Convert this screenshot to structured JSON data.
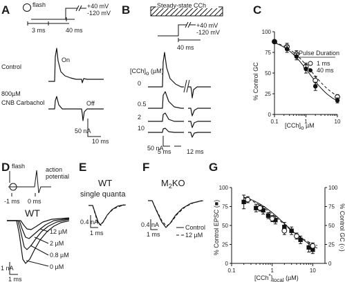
{
  "panels": {
    "A": {
      "label": "A",
      "flash": "flash",
      "v_hold": "+40 mV",
      "v_rest": "-120 mV",
      "t1": "3 ms",
      "t2": "40 ms",
      "row1": "Control",
      "row2a": "800µM",
      "row2b": "CNB Carbachol",
      "on": "On",
      "off": "Off",
      "scale_y": "50 nA",
      "scale_x": "10 ms"
    },
    "B": {
      "label": "B",
      "bar": "Steady-state CCh",
      "v_hold": "+40 mV",
      "v_rest": "-120 mV",
      "t2": "40 ms",
      "conc_title": "[CCh]",
      "conc_sub": "o",
      "conc_unit": " (µM)",
      "conc_values": [
        "0",
        "0.5",
        "2",
        "10"
      ],
      "scale_y": "50 nA",
      "scale_x1": "5 ms",
      "scale_x2": "12 ms"
    },
    "C": {
      "label": "C"
    },
    "D": {
      "label": "D",
      "flash": "flash",
      "ap1": "action",
      "ap2": "potential",
      "t1": "-1 ms",
      "t2": "0 ms",
      "wt": "WT",
      "concs": [
        "12 µM",
        "2 µM",
        "0.8 µM",
        "0 µM"
      ],
      "scale_y": "1 nA",
      "scale_x": "1 ms"
    },
    "E": {
      "label": "E",
      "title1": "WT",
      "title2": "single quanta",
      "scale_y": "0.4 nA",
      "scale_x": "1 ms"
    },
    "F": {
      "label": "F",
      "title_pre": "M",
      "title_sub": "2",
      "title_post": "KO",
      "leg1": "Control",
      "leg2": "12 µM",
      "scale_y": "0.4 nA",
      "scale_x": "1 ms"
    },
    "G": {
      "label": "G"
    }
  },
  "chart_data": [
    {
      "id": "C",
      "type": "scatter",
      "xscale": "log",
      "xlim": [
        0.1,
        10
      ],
      "ylim": [
        0,
        100
      ],
      "xticks": [
        "0.1",
        "1",
        "10"
      ],
      "yticks": [
        "0",
        "25",
        "50",
        "75",
        "100"
      ],
      "xlabel_pre": "[CCh]",
      "xlabel_sub": "o",
      "xlabel_post": " µM",
      "ylabel": "% Control GC",
      "legend_title": "Pulse Duration",
      "legend": "top-right",
      "series": [
        {
          "name": "1 ms",
          "marker": "open-circle",
          "x": [
            0.1,
            0.25,
            0.5,
            1,
            2,
            10
          ],
          "y": [
            88,
            82,
            73,
            58,
            41,
            21
          ],
          "err": [
            0,
            4,
            4,
            4,
            5,
            3
          ],
          "fit": "dashed"
        },
        {
          "name": "40 ms",
          "marker": "filled-circle",
          "x": [
            0.1,
            0.25,
            0.5,
            1,
            2,
            10
          ],
          "y": [
            88,
            79,
            70,
            55,
            34,
            17
          ],
          "err": [
            0,
            4,
            4,
            5,
            5,
            3
          ],
          "fit": "solid"
        }
      ]
    },
    {
      "id": "G",
      "type": "scatter",
      "xscale": "log",
      "xlim": [
        0.1,
        20
      ],
      "ylim": [
        0,
        100
      ],
      "xticks": [
        "0.1",
        "1",
        "10"
      ],
      "yticks": [
        "0",
        "25",
        "50",
        "75",
        "100"
      ],
      "xlabel_pre": "[CCh",
      "xlabel_sup": "*",
      "xlabel_post": "]",
      "xlabel_sub": "local",
      "xlabel_unit": " (µM)",
      "ylabel_left": "% Control EPSC (■)",
      "ylabel_right": "% Control GC (○)",
      "series": [
        {
          "name": "EPSC",
          "marker": "filled-square",
          "x": [
            0.2,
            0.4,
            0.6,
            0.8,
            1.2,
            2,
            3,
            5,
            8,
            10
          ],
          "y": [
            81,
            73,
            70,
            63,
            57,
            48,
            43,
            31,
            21,
            18
          ],
          "err": [
            9,
            5,
            5,
            4,
            5,
            6,
            5,
            5,
            6,
            5
          ],
          "fit": "solid"
        },
        {
          "name": "GC",
          "marker": "open-circle",
          "x": [
            0.25,
            0.5,
            1,
            2,
            4,
            10
          ],
          "y": [
            84,
            73,
            59,
            43,
            36,
            23
          ],
          "err": [
            4,
            4,
            4,
            5,
            4,
            4
          ],
          "fit": "dashed"
        }
      ]
    }
  ]
}
